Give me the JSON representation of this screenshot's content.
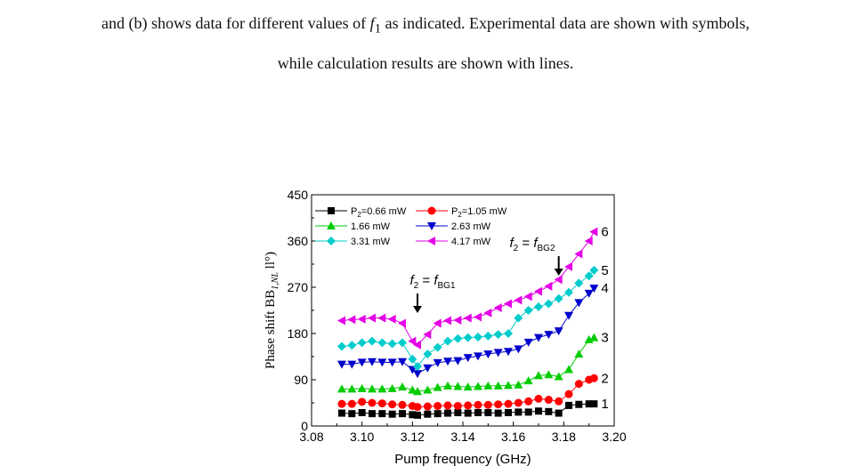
{
  "caption": {
    "line1_a": "and (b) shows data for different values of ",
    "line1_var": "f",
    "line1_sub": "1",
    "line1_b": " as indicated. Experimental data are shown with symbols,",
    "line2": "while calculation results are shown with lines."
  },
  "chart_data": {
    "type": "line",
    "title": "",
    "xlabel": "Pump frequency (GHz)",
    "ylabel": "Phase shift BB",
    "ylabel_sub": "1,NL",
    "ylabel_tail": " ll°)",
    "xlim": [
      3.08,
      3.2
    ],
    "ylim": [
      0,
      450
    ],
    "xticks": [
      "3.08",
      "3.10",
      "3.12",
      "3.14",
      "3.16",
      "3.18",
      "3.20"
    ],
    "yticks": [
      "0",
      "90",
      "180",
      "270",
      "360",
      "450"
    ],
    "grid": false,
    "legend_position": "top-left",
    "x": [
      3.092,
      3.094,
      3.096,
      3.098,
      3.1,
      3.102,
      3.104,
      3.106,
      3.108,
      3.11,
      3.112,
      3.114,
      3.116,
      3.118,
      3.12,
      3.122,
      3.124,
      3.126,
      3.128,
      3.13,
      3.132,
      3.134,
      3.136,
      3.138,
      3.14,
      3.142,
      3.144,
      3.146,
      3.148,
      3.15,
      3.152,
      3.154,
      3.156,
      3.158,
      3.16,
      3.162,
      3.164,
      3.166,
      3.168,
      3.17,
      3.172,
      3.174,
      3.176,
      3.178,
      3.18,
      3.182,
      3.184,
      3.186,
      3.188,
      3.19,
      3.192
    ],
    "series": [
      {
        "name": "P2=0.66 mW",
        "label_main": "P",
        "label_sub": "2",
        "label_tail": "=0.66 mW",
        "color": "#000000",
        "marker": "square",
        "end_label": "1",
        "x": [
          3.092,
          3.096,
          3.1,
          3.104,
          3.108,
          3.112,
          3.116,
          3.12,
          3.122,
          3.126,
          3.13,
          3.134,
          3.138,
          3.142,
          3.146,
          3.15,
          3.154,
          3.158,
          3.162,
          3.166,
          3.17,
          3.174,
          3.178,
          3.182,
          3.186,
          3.19,
          3.192
        ],
        "values": [
          25,
          24,
          26,
          24,
          24,
          23,
          24,
          22,
          21,
          23,
          24,
          25,
          26,
          25,
          26,
          26,
          25,
          26,
          27,
          27,
          29,
          28,
          25,
          40,
          42,
          43,
          43
        ]
      },
      {
        "name": "P2=1.05 mW",
        "label_main": "P",
        "label_sub": "2",
        "label_tail": "=1.05 mW",
        "color": "#ff0000",
        "marker": "circle",
        "end_label": "2",
        "x": [
          3.092,
          3.096,
          3.1,
          3.104,
          3.108,
          3.112,
          3.116,
          3.12,
          3.122,
          3.126,
          3.13,
          3.134,
          3.138,
          3.142,
          3.146,
          3.15,
          3.154,
          3.158,
          3.162,
          3.166,
          3.17,
          3.174,
          3.178,
          3.182,
          3.186,
          3.19,
          3.192
        ],
        "values": [
          43,
          43,
          47,
          45,
          44,
          42,
          41,
          39,
          37,
          38,
          39,
          40,
          39,
          40,
          41,
          41,
          42,
          43,
          45,
          48,
          53,
          51,
          48,
          62,
          82,
          90,
          93
        ]
      },
      {
        "name": "1.66 mW",
        "label_main": "1.66 mW",
        "color": "#00cc00",
        "marker": "triangle-up",
        "end_label": "3",
        "x": [
          3.092,
          3.096,
          3.1,
          3.104,
          3.108,
          3.112,
          3.116,
          3.12,
          3.122,
          3.126,
          3.13,
          3.134,
          3.138,
          3.142,
          3.146,
          3.15,
          3.154,
          3.158,
          3.162,
          3.166,
          3.17,
          3.174,
          3.178,
          3.182,
          3.186,
          3.19,
          3.192
        ],
        "values": [
          72,
          72,
          73,
          72,
          72,
          73,
          76,
          70,
          67,
          70,
          75,
          78,
          77,
          76,
          77,
          78,
          78,
          79,
          80,
          88,
          98,
          100,
          96,
          110,
          140,
          168,
          172
        ]
      },
      {
        "name": "2.63 mW",
        "label_main": "2.63 mW",
        "color": "#0000cc",
        "marker": "triangle-down",
        "end_label": "4",
        "x": [
          3.092,
          3.096,
          3.1,
          3.104,
          3.108,
          3.112,
          3.116,
          3.12,
          3.122,
          3.126,
          3.13,
          3.134,
          3.138,
          3.142,
          3.146,
          3.15,
          3.154,
          3.158,
          3.162,
          3.166,
          3.17,
          3.174,
          3.178,
          3.182,
          3.186,
          3.19,
          3.192
        ],
        "values": [
          120,
          120,
          124,
          125,
          124,
          124,
          125,
          110,
          102,
          113,
          123,
          126,
          127,
          133,
          136,
          140,
          143,
          145,
          150,
          163,
          172,
          178,
          185,
          215,
          240,
          258,
          268
        ]
      },
      {
        "name": "3.31 mW",
        "label_main": "3.31 mW",
        "color": "#00cccc",
        "marker": "diamond",
        "end_label": "5",
        "x": [
          3.092,
          3.096,
          3.1,
          3.104,
          3.108,
          3.112,
          3.116,
          3.12,
          3.122,
          3.126,
          3.13,
          3.134,
          3.138,
          3.142,
          3.146,
          3.15,
          3.154,
          3.158,
          3.162,
          3.166,
          3.17,
          3.174,
          3.178,
          3.182,
          3.186,
          3.19,
          3.192
        ],
        "values": [
          155,
          157,
          162,
          165,
          162,
          160,
          162,
          130,
          116,
          140,
          153,
          165,
          170,
          172,
          173,
          175,
          178,
          180,
          210,
          225,
          232,
          238,
          248,
          260,
          278,
          292,
          303
        ]
      },
      {
        "name": "4.17 mW",
        "label_main": "4.17 mW",
        "color": "#e600e6",
        "marker": "triangle-left",
        "end_label": "6",
        "x": [
          3.092,
          3.096,
          3.1,
          3.104,
          3.108,
          3.112,
          3.116,
          3.12,
          3.122,
          3.126,
          3.13,
          3.134,
          3.138,
          3.142,
          3.146,
          3.15,
          3.154,
          3.158,
          3.162,
          3.166,
          3.17,
          3.174,
          3.178,
          3.182,
          3.186,
          3.19,
          3.192
        ],
        "values": [
          205,
          207,
          208,
          210,
          210,
          208,
          200,
          165,
          158,
          178,
          200,
          205,
          206,
          210,
          212,
          220,
          230,
          238,
          245,
          252,
          262,
          272,
          285,
          310,
          335,
          360,
          378
        ]
      }
    ],
    "annotations": [
      {
        "var": "f",
        "sub": "2",
        "eq": " = ",
        "rhs_var": "f",
        "rhs_sub": "BG1",
        "x": 3.122
      },
      {
        "var": "f",
        "sub": "2",
        "eq": " = ",
        "rhs_var": "f",
        "rhs_sub": "BG2",
        "x": 3.178
      }
    ]
  }
}
